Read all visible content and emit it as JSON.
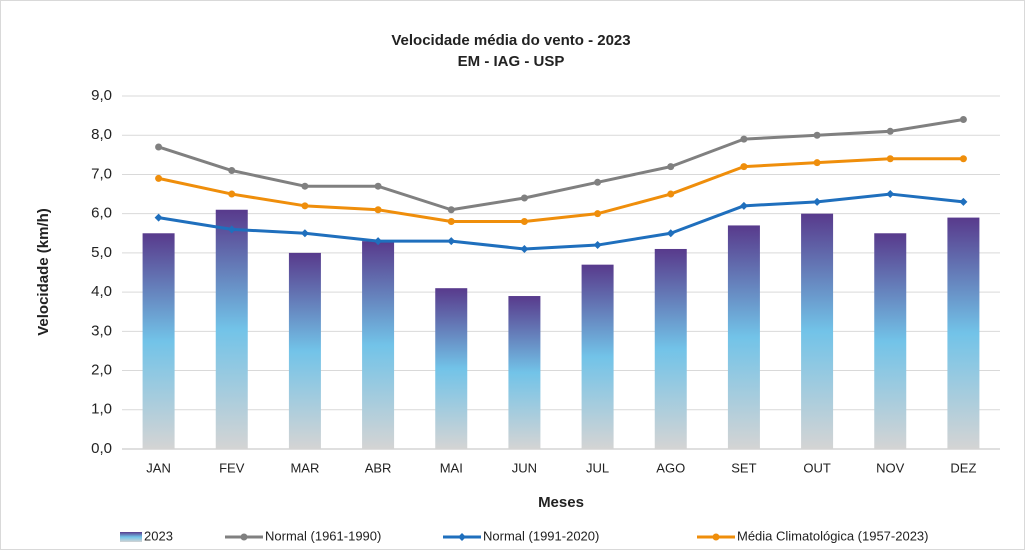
{
  "chart_data": {
    "type": "combo",
    "title": [
      "Velocidade média do vento - 2023",
      "EM - IAG - USP"
    ],
    "y_label": "Velocidade (km/h)",
    "x_label": "Meses",
    "categories": [
      "JAN",
      "FEV",
      "MAR",
      "ABR",
      "MAI",
      "JUN",
      "JUL",
      "AGO",
      "SET",
      "OUT",
      "NOV",
      "DEZ"
    ],
    "series": [
      {
        "name": "2023",
        "type": "bar",
        "color": [
          "#583a8c",
          "#72c3e8",
          "#d4d4d4"
        ],
        "values": [
          5.5,
          6.1,
          5.0,
          5.3,
          4.1,
          3.9,
          4.7,
          5.1,
          5.7,
          6.0,
          5.5,
          5.9
        ]
      },
      {
        "name": "Normal (1961-1990)",
        "type": "line",
        "marker": "circle",
        "color": "#808080",
        "values": [
          7.7,
          7.1,
          6.7,
          6.7,
          6.1,
          6.4,
          6.8,
          7.2,
          7.9,
          8.0,
          8.1,
          8.4
        ]
      },
      {
        "name": "Normal (1991-2020)",
        "type": "line",
        "marker": "diamond",
        "color": "#1f6fbd",
        "values": [
          5.9,
          5.6,
          5.5,
          5.3,
          5.3,
          5.1,
          5.2,
          5.5,
          6.2,
          6.3,
          6.5,
          6.3
        ]
      },
      {
        "name": "Média Climatológica (1957-2023)",
        "type": "line",
        "marker": "circle",
        "color": "#ef8e0b",
        "values": [
          6.9,
          6.5,
          6.2,
          6.1,
          5.8,
          5.8,
          6.0,
          6.5,
          7.2,
          7.3,
          7.4,
          7.4
        ]
      }
    ],
    "ylim": [
      0,
      9
    ],
    "yticks": [
      {
        "value": 0,
        "label": "0,0"
      },
      {
        "value": 1,
        "label": "1,0"
      },
      {
        "value": 2,
        "label": "2,0"
      },
      {
        "value": 3,
        "label": "3,0"
      },
      {
        "value": 4,
        "label": "4,0"
      },
      {
        "value": 5,
        "label": "5,0"
      },
      {
        "value": 6,
        "label": "6,0"
      },
      {
        "value": 7,
        "label": "7,0"
      },
      {
        "value": 8,
        "label": "8,0"
      },
      {
        "value": 9,
        "label": "9,0"
      }
    ],
    "grid": true,
    "legend": "bottom"
  }
}
